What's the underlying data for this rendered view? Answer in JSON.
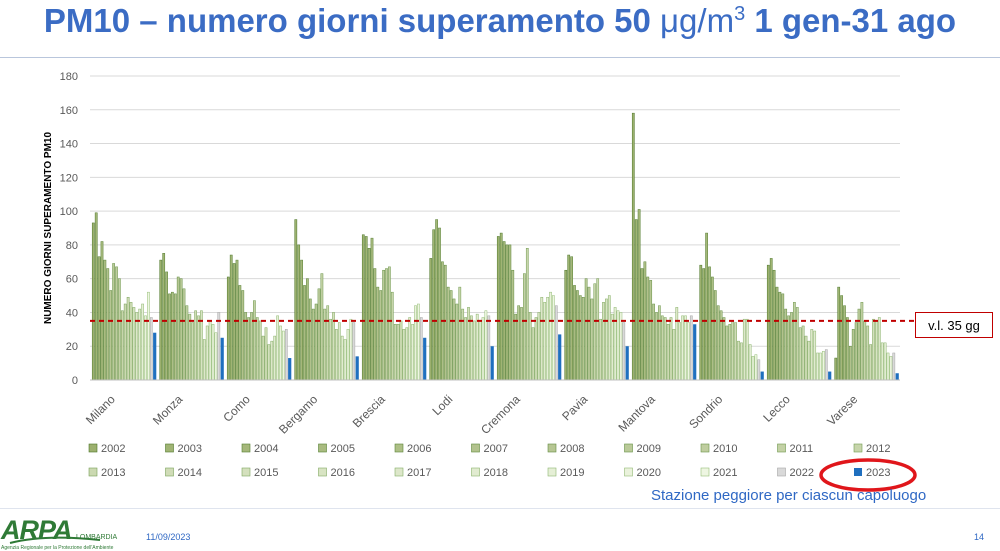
{
  "title": {
    "main": "PM10 – numero giorni superamento 50 ",
    "unit_base": "μg/m",
    "unit_sup": "3",
    "period": " 1 gen-31 ago"
  },
  "limit_label": "v.l. 35 gg",
  "caption": "Stazione peggiore per ciascun capoluogo",
  "footer": {
    "logo_text": "ARPA",
    "logo_region": "LOMBARDIA",
    "logo_subtitle": "Agenzia Regionale per la Protezione dell'Ambiente",
    "date": "11/09/2023",
    "page": "14"
  },
  "colors": {
    "title": "#3b6cc4",
    "highlight_2023": "#1f6fbf",
    "limit_line": "#c00000",
    "annotation_ellipse": "#e0161b",
    "caption": "#2f68c4"
  },
  "chart_data": {
    "type": "bar",
    "ylabel": "NUMERO GIORNI SUPERAMENTO PM10",
    "ylim": [
      0,
      180
    ],
    "yticks": [
      0,
      20,
      40,
      60,
      80,
      100,
      120,
      140,
      160,
      180
    ],
    "grid": true,
    "legend_position": "bottom",
    "reference_line": {
      "value": 35,
      "label": "v.l. 35 gg",
      "style": "dashed"
    },
    "categories": [
      "Milano",
      "Monza",
      "Como",
      "Bergamo",
      "Brescia",
      "Lodi",
      "Cremona",
      "Pavia",
      "Mantova",
      "Sondrio",
      "Lecco",
      "Varese"
    ],
    "series": [
      {
        "name": "2002",
        "values": [
          93,
          71,
          61,
          95,
          86,
          72,
          85,
          65,
          158,
          68,
          68,
          13
        ]
      },
      {
        "name": "2003",
        "values": [
          99,
          75,
          74,
          80,
          85,
          89,
          87,
          74,
          95,
          66,
          72,
          55
        ]
      },
      {
        "name": "2004",
        "values": [
          73,
          64,
          69,
          71,
          78,
          95,
          82,
          73,
          101,
          87,
          65,
          50
        ]
      },
      {
        "name": "2005",
        "values": [
          82,
          51,
          71,
          56,
          84,
          90,
          80,
          56,
          66,
          67,
          55,
          44
        ]
      },
      {
        "name": "2006",
        "values": [
          71,
          52,
          56,
          60,
          66,
          70,
          80,
          53,
          70,
          61,
          52,
          37
        ]
      },
      {
        "name": "2007",
        "values": [
          66,
          51,
          53,
          48,
          55,
          68,
          65,
          50,
          61,
          53,
          51,
          20
        ]
      },
      {
        "name": "2008",
        "values": [
          53,
          61,
          40,
          42,
          53,
          55,
          39,
          49,
          59,
          44,
          42,
          30
        ]
      },
      {
        "name": "2009",
        "values": [
          69,
          60,
          37,
          45,
          65,
          53,
          44,
          60,
          45,
          41,
          38,
          34
        ]
      },
      {
        "name": "2010",
        "values": [
          67,
          54,
          40,
          54,
          66,
          48,
          43,
          55,
          40,
          37,
          40,
          42
        ]
      },
      {
        "name": "2011",
        "values": [
          60,
          44,
          47,
          63,
          67,
          45,
          63,
          48,
          44,
          32,
          46,
          46
        ]
      },
      {
        "name": "2012",
        "values": [
          41,
          39,
          37,
          42,
          52,
          55,
          78,
          57,
          38,
          33,
          43,
          35
        ]
      },
      {
        "name": "2013",
        "values": [
          45,
          34,
          35,
          44,
          33,
          42,
          40,
          60,
          37,
          35,
          31,
          32
        ]
      },
      {
        "name": "2014",
        "values": [
          49,
          41,
          26,
          36,
          33,
          37,
          31,
          36,
          33,
          34,
          32,
          21
        ]
      },
      {
        "name": "2015",
        "values": [
          46,
          38,
          31,
          40,
          35,
          43,
          37,
          46,
          37,
          23,
          26,
          36
        ]
      },
      {
        "name": "2016",
        "values": [
          43,
          41,
          21,
          30,
          30,
          38,
          40,
          48,
          30,
          22,
          23,
          35
        ]
      },
      {
        "name": "2017",
        "values": [
          40,
          24,
          23,
          34,
          31,
          35,
          49,
          50,
          43,
          36,
          30,
          37
        ]
      },
      {
        "name": "2018",
        "values": [
          42,
          32,
          26,
          26,
          37,
          39,
          46,
          39,
          34,
          36,
          29,
          22
        ]
      },
      {
        "name": "2019",
        "values": [
          45,
          35,
          38,
          24,
          33,
          35,
          49,
          43,
          38,
          21,
          16,
          22
        ]
      },
      {
        "name": "2020",
        "values": [
          38,
          33,
          32,
          30,
          44,
          37,
          52,
          41,
          38,
          14,
          16,
          16
        ]
      },
      {
        "name": "2021",
        "values": [
          52,
          28,
          29,
          36,
          45,
          41,
          50,
          40,
          34,
          15,
          17,
          14
        ]
      },
      {
        "name": "2022",
        "values": [
          37,
          40,
          30,
          34,
          37,
          38,
          44,
          34,
          38,
          12,
          18,
          16
        ]
      },
      {
        "name": "2023",
        "values": [
          28,
          25,
          13,
          14,
          25,
          20,
          27,
          20,
          33,
          5,
          5,
          4
        ]
      }
    ]
  }
}
